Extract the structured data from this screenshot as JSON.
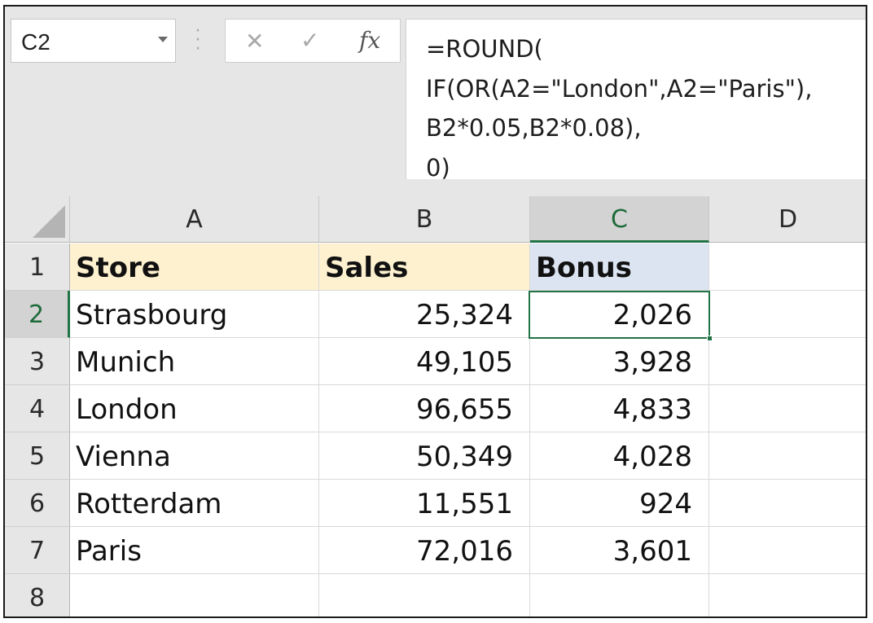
{
  "name_box": {
    "value": "C2"
  },
  "formula_bar": {
    "cancel_icon": "close-icon",
    "enter_icon": "check-icon",
    "fx_label": "fx",
    "lines": [
      "=ROUND(",
      "IF(OR(A2=\"London\",A2=\"Paris\"),",
      "B2*0.05,B2*0.08),",
      "0)"
    ]
  },
  "grid": {
    "columns": [
      "A",
      "B",
      "C",
      "D"
    ],
    "active_column": "C",
    "active_row": "2",
    "rows": [
      "1",
      "2",
      "3",
      "4",
      "5",
      "6",
      "7",
      "8"
    ],
    "header": {
      "store": "Store",
      "sales": "Sales",
      "bonus": "Bonus"
    },
    "data": [
      {
        "store": "Strasbourg",
        "sales": "25,324",
        "bonus": "2,026"
      },
      {
        "store": "Munich",
        "sales": "49,105",
        "bonus": "3,928"
      },
      {
        "store": "London",
        "sales": "96,655",
        "bonus": "4,833"
      },
      {
        "store": "Vienna",
        "sales": "50,349",
        "bonus": "4,028"
      },
      {
        "store": "Rotterdam",
        "sales": "11,551",
        "bonus": "924"
      },
      {
        "store": "Paris",
        "sales": "72,016",
        "bonus": "3,601"
      }
    ]
  },
  "colors": {
    "accent_green": "#217346",
    "header_fill_yellow": "#fdf1cf",
    "header_fill_blue": "#dbe4f0"
  }
}
